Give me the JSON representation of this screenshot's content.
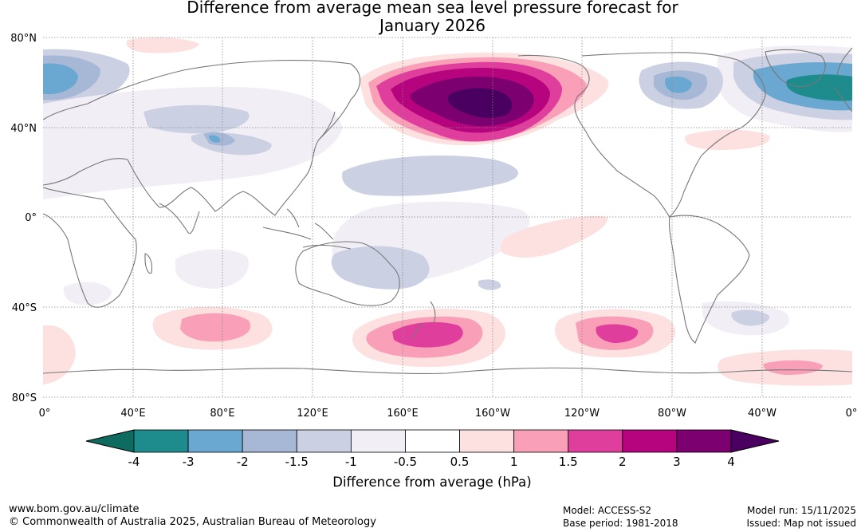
{
  "title": {
    "line1": "Difference from average mean sea level pressure forecast for",
    "line2": "January 2026"
  },
  "map": {
    "lat_labels": [
      "80°N",
      "40°N",
      "0°",
      "40°S",
      "80°S"
    ],
    "lon_labels": [
      "0°",
      "40°E",
      "80°E",
      "120°E",
      "160°E",
      "160°W",
      "120°W",
      "80°W",
      "40°W",
      "0°"
    ]
  },
  "colorbar": {
    "values": [
      "-4",
      "-3",
      "-2",
      "-1.5",
      "-1",
      "-0.5",
      "0.5",
      "1",
      "1.5",
      "2",
      "3",
      "4"
    ],
    "colors": [
      "#1e8c8c",
      "#6aa8d2",
      "#a7b8d6",
      "#ccd0e3",
      "#f1eef5",
      "#ffffff",
      "#fde0e0",
      "#f99fb8",
      "#df3e9c",
      "#b5047e",
      "#7c0070"
    ],
    "under_color": "#0e6b5f",
    "over_color": "#4a0060",
    "label": "Difference from average (hPa)"
  },
  "footer": {
    "url": "www.bom.gov.au/climate",
    "copyright": "© Commonwealth of Australia 2025, Australian Bureau of Meteorology",
    "model": "Model: ACCESS-S2",
    "base_period": "Base period: 1981-2018",
    "model_run": "Model run: 15/11/2025",
    "issued": "Issued: Map not issued"
  }
}
